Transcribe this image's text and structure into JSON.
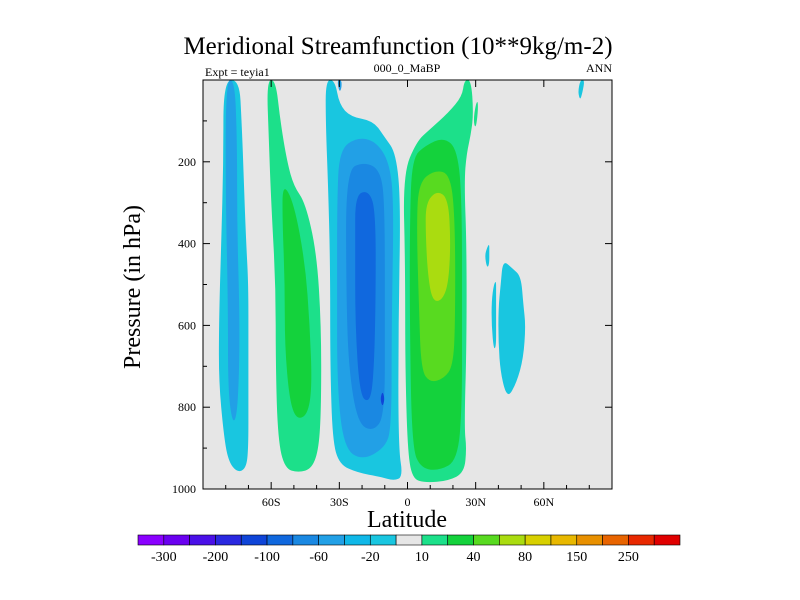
{
  "chart_data": {
    "type": "contour",
    "title": "Meridional Streamfunction (10**9kg/m-2)",
    "subtitle_left": "Expt = teyia1",
    "subtitle_center": "000_0_MaBP",
    "subtitle_right": "ANN",
    "xlabel": "Latitude",
    "ylabel": "Pressure (in hPa)",
    "xlim": [
      -90,
      90
    ],
    "ylim": [
      0,
      1000
    ],
    "x_ticks": [
      {
        "value": -60,
        "label": "60S"
      },
      {
        "value": -30,
        "label": "30S"
      },
      {
        "value": 0,
        "label": "0"
      },
      {
        "value": 30,
        "label": "30N"
      },
      {
        "value": 60,
        "label": "60N"
      }
    ],
    "y_ticks": [
      {
        "value": 200,
        "label": "200"
      },
      {
        "value": 400,
        "label": "400"
      },
      {
        "value": 600,
        "label": "600"
      },
      {
        "value": 800,
        "label": "800"
      },
      {
        "value": 1000,
        "label": "1000"
      }
    ],
    "background_color": "#e6e6e6",
    "colorbar": {
      "levels": [
        -300,
        -250,
        -200,
        -150,
        -100,
        -80,
        -60,
        -40,
        -20,
        -10,
        10,
        20,
        40,
        60,
        80,
        100,
        150,
        200,
        250,
        300
      ],
      "labeled_levels": [
        "-300",
        "-200",
        "-100",
        "-60",
        "-20",
        "10",
        "40",
        "80",
        "150",
        "250"
      ],
      "colors": [
        "#8a00ff",
        "#6a00f0",
        "#4a10e8",
        "#2a28e0",
        "#0f45d8",
        "#1068de",
        "#1a88e2",
        "#22a0e6",
        "#10b8e8",
        "#19c6e0",
        "#e6e6e6",
        "#1ce08a",
        "#14d23c",
        "#58da20",
        "#aadc10",
        "#d8d000",
        "#e8b800",
        "#e89000",
        "#e86400",
        "#e82800",
        "#e00000"
      ]
    },
    "regions": [
      {
        "name": "sh-polar-cell-outer",
        "level": -10,
        "color": "#19c6e0",
        "points": [
          [
            -81,
            0
          ],
          [
            -74,
            0
          ],
          [
            -73,
            100
          ],
          [
            -72,
            250
          ],
          [
            -71,
            400
          ],
          [
            -70,
            500
          ],
          [
            -70,
            650
          ],
          [
            -70,
            780
          ],
          [
            -70,
            900
          ],
          [
            -71,
            950
          ],
          [
            -75,
            960
          ],
          [
            -79,
            930
          ],
          [
            -81,
            860
          ],
          [
            -83,
            740
          ],
          [
            -83,
            600
          ],
          [
            -82,
            400
          ],
          [
            -81,
            200
          ]
        ]
      },
      {
        "name": "sh-polar-cell-inner",
        "level": -20,
        "color": "#22a0e6",
        "points": [
          [
            -80,
            0
          ],
          [
            -76,
            0
          ],
          [
            -75,
            150
          ],
          [
            -75,
            350
          ],
          [
            -74,
            550
          ],
          [
            -74,
            700
          ],
          [
            -75,
            820
          ],
          [
            -77,
            840
          ],
          [
            -79,
            760
          ],
          [
            -79,
            550
          ],
          [
            -80,
            300
          ]
        ]
      },
      {
        "name": "sh-ferrel-outer",
        "level": 10,
        "color": "#1ce08a",
        "points": [
          [
            -62,
            0
          ],
          [
            -58,
            0
          ],
          [
            -56,
            100
          ],
          [
            -53,
            200
          ],
          [
            -50,
            260
          ],
          [
            -45,
            300
          ],
          [
            -40,
            420
          ],
          [
            -38,
            600
          ],
          [
            -38,
            800
          ],
          [
            -39,
            900
          ],
          [
            -42,
            950
          ],
          [
            -48,
            960
          ],
          [
            -54,
            950
          ],
          [
            -57,
            880
          ],
          [
            -58,
            700
          ],
          [
            -58,
            500
          ],
          [
            -60,
            300
          ],
          [
            -61,
            150
          ]
        ]
      },
      {
        "name": "sh-ferrel-inner",
        "level": 20,
        "color": "#14d23c",
        "points": [
          [
            -55,
            250
          ],
          [
            -50,
            300
          ],
          [
            -45,
            450
          ],
          [
            -43,
            600
          ],
          [
            -42,
            750
          ],
          [
            -44,
            820
          ],
          [
            -49,
            830
          ],
          [
            -52,
            780
          ],
          [
            -54,
            650
          ],
          [
            -54,
            500
          ],
          [
            -55,
            350
          ]
        ]
      },
      {
        "name": "sh-hadley-outer",
        "level": -10,
        "color": "#19c6e0",
        "points": [
          [
            -36,
            0
          ],
          [
            -32,
            0
          ],
          [
            -30,
            60
          ],
          [
            -25,
            90
          ],
          [
            -15,
            100
          ],
          [
            -10,
            140
          ],
          [
            -5,
            180
          ],
          [
            -3,
            300
          ],
          [
            -4,
            600
          ],
          [
            -4,
            900
          ],
          [
            -2,
            970
          ],
          [
            -6,
            980
          ],
          [
            -12,
            970
          ],
          [
            -22,
            960
          ],
          [
            -30,
            940
          ],
          [
            -33,
            880
          ],
          [
            -34,
            700
          ],
          [
            -34,
            450
          ],
          [
            -35,
            250
          ],
          [
            -36,
            100
          ]
        ]
      },
      {
        "name": "sh-hadley-mid",
        "level": -20,
        "color": "#22a0e6",
        "points": [
          [
            -30,
            170
          ],
          [
            -22,
            140
          ],
          [
            -14,
            150
          ],
          [
            -8,
            200
          ],
          [
            -6,
            300
          ],
          [
            -7,
            600
          ],
          [
            -7,
            850
          ],
          [
            -10,
            900
          ],
          [
            -20,
            930
          ],
          [
            -28,
            900
          ],
          [
            -31,
            750
          ],
          [
            -31,
            500
          ],
          [
            -31,
            300
          ]
        ]
      },
      {
        "name": "sh-hadley-inner",
        "level": -40,
        "color": "#1a88e2",
        "points": [
          [
            -27,
            220
          ],
          [
            -19,
            200
          ],
          [
            -12,
            220
          ],
          [
            -10,
            300
          ],
          [
            -10,
            600
          ],
          [
            -10,
            820
          ],
          [
            -15,
            860
          ],
          [
            -22,
            840
          ],
          [
            -26,
            700
          ],
          [
            -27,
            500
          ]
        ]
      },
      {
        "name": "sh-hadley-core",
        "level": -60,
        "color": "#1068de",
        "points": [
          [
            -23,
            280
          ],
          [
            -17,
            270
          ],
          [
            -14,
            320
          ],
          [
            -14,
            550
          ],
          [
            -15,
            740
          ],
          [
            -17,
            790
          ],
          [
            -21,
            770
          ],
          [
            -23,
            600
          ],
          [
            -23,
            400
          ]
        ]
      },
      {
        "name": "nh-hadley-outer",
        "level": 10,
        "color": "#1ce08a",
        "points": [
          [
            -2,
            230
          ],
          [
            4,
            150
          ],
          [
            10,
            120
          ],
          [
            18,
            80
          ],
          [
            24,
            40
          ],
          [
            25,
            0
          ],
          [
            28,
            0
          ],
          [
            29,
            80
          ],
          [
            28,
            130
          ],
          [
            26,
            180
          ],
          [
            25,
            250
          ],
          [
            26,
            400
          ],
          [
            26,
            650
          ],
          [
            25,
            850
          ],
          [
            26,
            900
          ],
          [
            25,
            960
          ],
          [
            18,
            980
          ],
          [
            8,
            985
          ],
          [
            2,
            975
          ],
          [
            0,
            900
          ],
          [
            -1,
            700
          ],
          [
            -1,
            450
          ]
        ]
      },
      {
        "name": "nh-hadley-mid",
        "level": 20,
        "color": "#14d23c",
        "points": [
          [
            2,
            190
          ],
          [
            8,
            160
          ],
          [
            16,
            140
          ],
          [
            22,
            170
          ],
          [
            24,
            300
          ],
          [
            24,
            600
          ],
          [
            24,
            800
          ],
          [
            22,
            930
          ],
          [
            14,
            955
          ],
          [
            6,
            950
          ],
          [
            2,
            900
          ],
          [
            1,
            600
          ],
          [
            1,
            350
          ]
        ]
      },
      {
        "name": "nh-hadley-inner",
        "level": 40,
        "color": "#58da20",
        "points": [
          [
            5,
            250
          ],
          [
            12,
            220
          ],
          [
            19,
            230
          ],
          [
            21,
            350
          ],
          [
            21,
            600
          ],
          [
            20,
            700
          ],
          [
            16,
            730
          ],
          [
            10,
            740
          ],
          [
            6,
            710
          ],
          [
            5,
            550
          ],
          [
            4,
            350
          ]
        ]
      },
      {
        "name": "nh-hadley-core",
        "level": 60,
        "color": "#aadc10",
        "points": [
          [
            8,
            300
          ],
          [
            13,
            270
          ],
          [
            18,
            290
          ],
          [
            19,
            400
          ],
          [
            18,
            500
          ],
          [
            15,
            540
          ],
          [
            11,
            540
          ],
          [
            9,
            480
          ],
          [
            8,
            380
          ]
        ]
      },
      {
        "name": "nh-ferrel-patch",
        "level": -10,
        "color": "#19c6e0",
        "points": [
          [
            42,
            440
          ],
          [
            46,
            460
          ],
          [
            50,
            480
          ],
          [
            51,
            550
          ],
          [
            52,
            600
          ],
          [
            51,
            680
          ],
          [
            48,
            740
          ],
          [
            44,
            780
          ],
          [
            41,
            720
          ],
          [
            40,
            640
          ],
          [
            40,
            560
          ],
          [
            41,
            500
          ]
        ]
      },
      {
        "name": "nh-cell-sliver",
        "level": -10,
        "color": "#19c6e0",
        "points": [
          [
            35,
            410
          ],
          [
            36,
            400
          ],
          [
            36,
            420
          ],
          [
            36,
            450
          ],
          [
            35,
            460
          ],
          [
            34,
            430
          ]
        ]
      },
      {
        "name": "nh-low-sliver",
        "level": -10,
        "color": "#19c6e0",
        "points": [
          [
            38,
            500
          ],
          [
            39,
            490
          ],
          [
            39,
            520
          ],
          [
            39,
            600
          ],
          [
            39,
            650
          ],
          [
            38,
            660
          ],
          [
            37,
            600
          ],
          [
            37,
            540
          ]
        ]
      },
      {
        "name": "nh-top-sliver",
        "level": 10,
        "color": "#1ce08a",
        "points": [
          [
            30,
            60
          ],
          [
            31,
            50
          ],
          [
            31,
            80
          ],
          [
            30,
            120
          ],
          [
            29,
            100
          ]
        ]
      },
      {
        "name": "nh-polar-fleck",
        "level": -10,
        "color": "#19c6e0",
        "points": [
          [
            76,
            0
          ],
          [
            78,
            0
          ],
          [
            77,
            30
          ],
          [
            76,
            50
          ],
          [
            75,
            30
          ]
        ]
      },
      {
        "name": "sh-top-fleck",
        "level": -20,
        "color": "#22a0e6",
        "points": [
          [
            -31,
            0
          ],
          [
            -29,
            0
          ],
          [
            -29,
            20
          ],
          [
            -30,
            30
          ]
        ]
      },
      {
        "name": "sh-core-fleck",
        "level": -80,
        "color": "#0f45d8",
        "points": [
          [
            -11,
            760
          ],
          [
            -10,
            780
          ],
          [
            -11,
            800
          ],
          [
            -12,
            780
          ]
        ]
      }
    ]
  }
}
